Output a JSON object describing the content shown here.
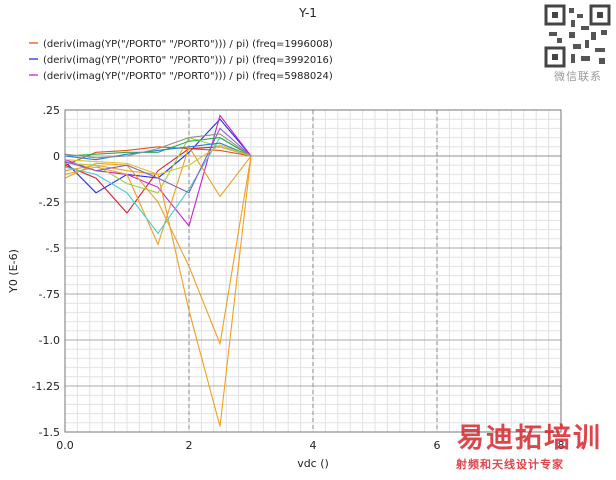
{
  "chart_data": {
    "type": "line",
    "title": "Y-1",
    "xlabel": "vdc ()",
    "ylabel": "Y0 (E-6)",
    "xlim": [
      0,
      8
    ],
    "ylim": [
      -1.5,
      0.25
    ],
    "xticks": [
      "0.0",
      "2",
      "4",
      "6",
      "8"
    ],
    "yticks": [
      ".25",
      "0",
      "-.25",
      "-.5",
      "-.75",
      "-1.0",
      "-1.25",
      "-1.5"
    ],
    "grid": true,
    "legend_position": "top-left",
    "x": [
      0,
      0.5,
      1.0,
      1.5,
      2.0,
      2.5,
      3.0
    ],
    "series": [
      {
        "name": "(deriv(imag(YP(\"/PORT0\" \"/PORT0\"))) / pi) (freq=1996008)",
        "color": "#e8501f",
        "values": [
          -0.05,
          0.02,
          0.03,
          0.05,
          0.04,
          0.03,
          0.0
        ]
      },
      {
        "name": "(deriv(imag(YP(\"/PORT0\" \"/PORT0\"))) / pi) (freq=3992016)",
        "color": "#1f2fe8",
        "values": [
          -0.03,
          -0.2,
          -0.1,
          -0.12,
          0.02,
          0.2,
          0.0
        ]
      },
      {
        "name": "(deriv(imag(YP(\"/PORT0\" \"/PORT0\"))) / pi) (freq=5988024)",
        "color": "#c81fd8",
        "values": [
          -0.02,
          -0.08,
          -0.1,
          -0.17,
          -0.38,
          0.22,
          0.0
        ]
      },
      {
        "color": "#d8202a",
        "values": [
          -0.05,
          -0.12,
          -0.31,
          -0.08,
          0.04,
          0.05,
          0.0
        ]
      },
      {
        "color": "#f0a020",
        "values": [
          -0.12,
          -0.04,
          -0.05,
          -0.25,
          -0.6,
          -1.02,
          0.0
        ]
      },
      {
        "color": "#f0a020",
        "values": [
          -0.08,
          -0.05,
          -0.08,
          -0.1,
          -0.84,
          -1.47,
          0.0
        ]
      },
      {
        "color": "#f0a020",
        "values": [
          -0.1,
          -0.06,
          -0.1,
          -0.48,
          0.05,
          -0.22,
          0.0
        ]
      },
      {
        "color": "#40d0d0",
        "values": [
          -0.06,
          -0.1,
          -0.2,
          -0.42,
          -0.18,
          0.1,
          0.0
        ]
      },
      {
        "color": "#a0d040",
        "values": [
          -0.04,
          -0.05,
          -0.15,
          -0.2,
          0.1,
          0.05,
          0.0
        ]
      },
      {
        "color": "#30b040",
        "values": [
          0.0,
          0.01,
          0.02,
          0.02,
          0.08,
          0.1,
          0.0
        ]
      },
      {
        "color": "#8060c0",
        "values": [
          -0.03,
          -0.08,
          -0.05,
          -0.12,
          -0.2,
          0.15,
          0.0
        ]
      },
      {
        "color": "#2080e0",
        "values": [
          0.0,
          -0.02,
          0.01,
          0.03,
          0.05,
          0.07,
          0.0
        ]
      },
      {
        "color": "#e0c030",
        "values": [
          -0.02,
          -0.03,
          -0.04,
          -0.1,
          -0.05,
          0.06,
          0.0
        ]
      },
      {
        "color": "#909090",
        "values": [
          0.01,
          -0.01,
          0.0,
          0.04,
          0.1,
          0.12,
          0.0
        ]
      }
    ]
  },
  "watermark": {
    "qr_caption": "微信联系",
    "brand": "易迪拓培训",
    "tagline": "射频和天线设计专家"
  }
}
